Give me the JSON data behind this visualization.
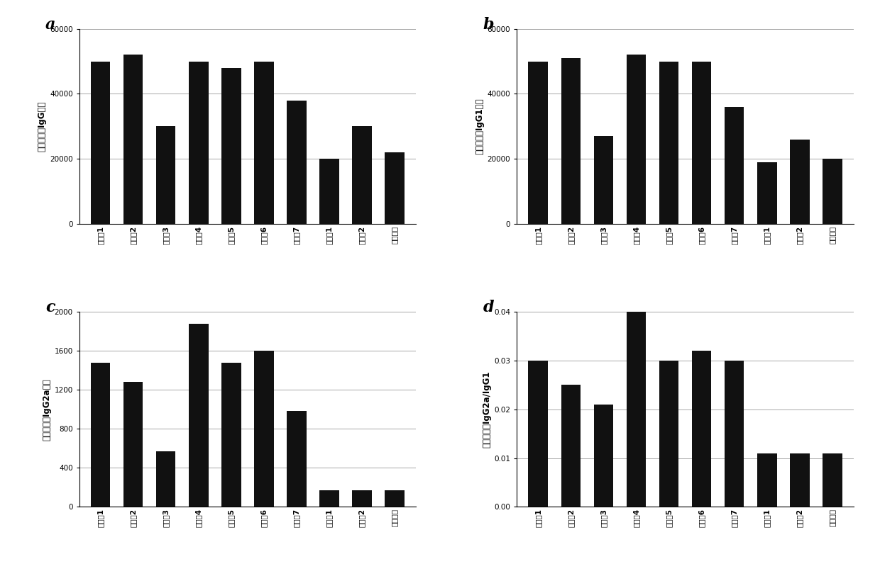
{
  "categories": [
    "实施例1",
    "实施例2",
    "实施例3",
    "实施例4",
    "实施例5",
    "实施例6",
    "实施例7",
    "对比例1",
    "对比例2",
    "阴性对照"
  ],
  "chart_a": {
    "label": "a",
    "ylabel": "多糖特异性IgG滴度",
    "ylim": [
      0,
      60000
    ],
    "yticks": [
      0,
      20000,
      40000,
      60000
    ],
    "values": [
      50000,
      52000,
      30000,
      50000,
      48000,
      50000,
      38000,
      20000,
      30000,
      22000
    ]
  },
  "chart_b": {
    "label": "b",
    "ylabel": "多糖特异性IgG1滴度",
    "ylim": [
      0,
      60000
    ],
    "yticks": [
      0,
      20000,
      40000,
      60000
    ],
    "values": [
      50000,
      51000,
      27000,
      52000,
      50000,
      50000,
      36000,
      19000,
      26000,
      20000
    ]
  },
  "chart_c": {
    "label": "c",
    "ylabel": "多糖特异性IgG2a滴度",
    "ylim": [
      0,
      2000
    ],
    "yticks": [
      0,
      400,
      800,
      1200,
      1600,
      2000
    ],
    "values": [
      1480,
      1280,
      570,
      1880,
      1480,
      1600,
      980,
      170,
      170,
      170
    ]
  },
  "chart_d": {
    "label": "d",
    "ylabel": "多糖特异性IgG2a/IgG1",
    "ylim": [
      0,
      0.04
    ],
    "yticks": [
      0,
      0.01,
      0.02,
      0.03,
      0.04
    ],
    "values": [
      0.03,
      0.025,
      0.021,
      0.04,
      0.03,
      0.032,
      0.03,
      0.011,
      0.011,
      0.011
    ]
  },
  "bar_color": "#111111",
  "bg_color": "#ffffff",
  "grid_color": "#999999",
  "label_fontsize": 16,
  "tick_fontsize": 7.5,
  "ylabel_fontsize": 8.5
}
